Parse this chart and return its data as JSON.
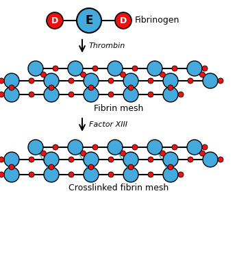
{
  "bg_color": "#ffffff",
  "blue": "#44AADD",
  "red": "#EE1111",
  "cyan_cross": "#44BBCC",
  "black": "#000000",
  "figsize": [
    3.46,
    3.87
  ],
  "dpi": 100,
  "fibrinogen_label": "Fibrinogen",
  "fibrin_label": "Fibrin mesh",
  "crosslinked_label": "Crosslinked fibrin mesh",
  "thrombin_label": "Thrombin",
  "factorXIII_label": "Factor XIII",
  "lbr": 11,
  "sr": 4,
  "er": 18,
  "dr_r": 12
}
